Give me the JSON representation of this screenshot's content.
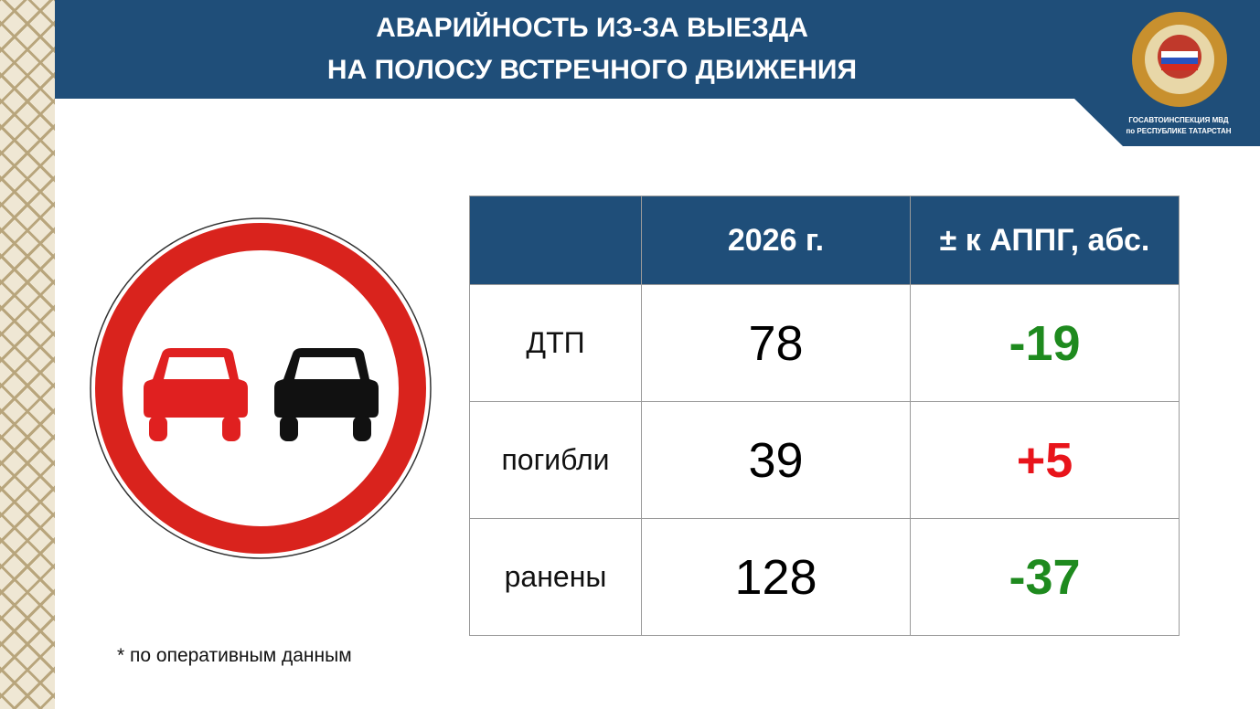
{
  "header": {
    "title": [
      "АВАРИЙНОСТЬ ИЗ-ЗА ВЫЕЗДА",
      "НА ПОЛОСУ ВСТРЕЧНОГО ДВИЖЕНИЯ"
    ]
  },
  "logo": {
    "text": [
      "ГОСАВТОИНСПЕКЦИЯ МВД",
      "по РЕСПУБЛИКЕ ТАТАРСТАН"
    ]
  },
  "table": {
    "columns": [
      "2026 г.",
      "± к АППГ, абс."
    ],
    "rows": [
      {
        "label": "ДТП",
        "value": "78",
        "change": "-19",
        "change_color": "#1e8a1e"
      },
      {
        "label": "погибли",
        "value": "39",
        "change": "+5",
        "change_color": "#e8141b"
      },
      {
        "label": "ранены",
        "value": "128",
        "change": "-37",
        "change_color": "#1e8a1e"
      }
    ]
  },
  "footnote": "* по оперативным данным"
}
